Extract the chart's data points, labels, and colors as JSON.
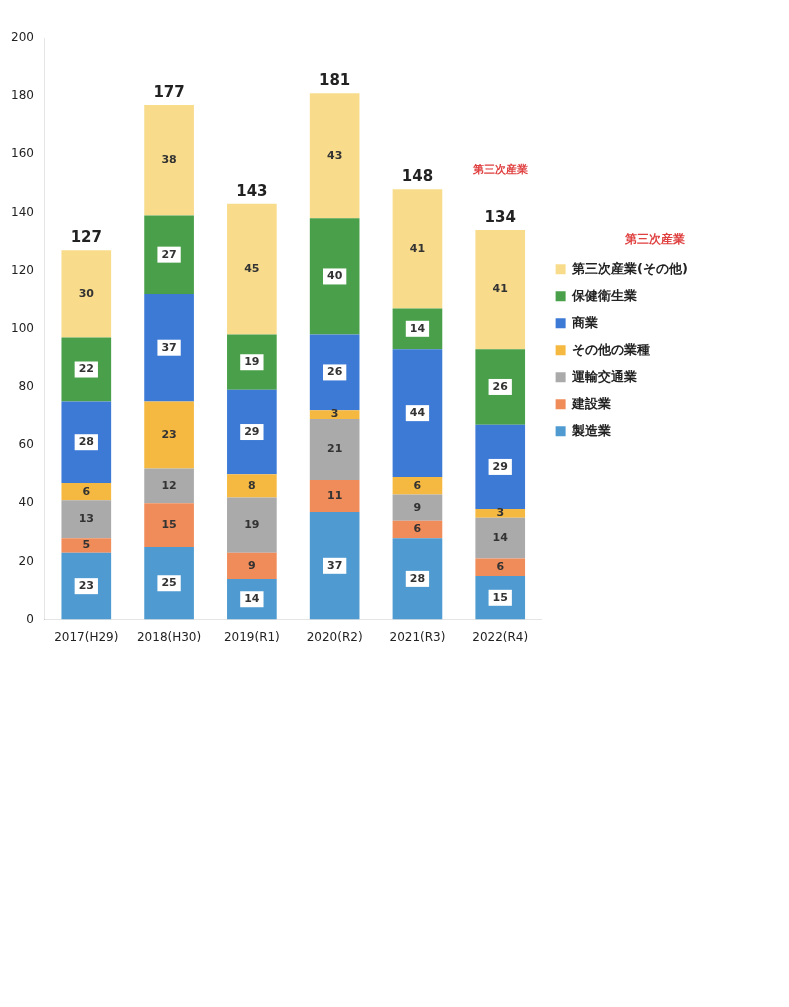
{
  "chart_data": {
    "type": "bar",
    "stacked": true,
    "categories": [
      "2017(H29)",
      "2018(H30)",
      "2019(R1)",
      "2020(R2)",
      "2021(R3)",
      "2022(R4)"
    ],
    "series": [
      {
        "name": "製造業",
        "color": "#4f9bd1",
        "values": [
          23,
          25,
          14,
          37,
          28,
          15
        ]
      },
      {
        "name": "建設業",
        "color": "#f08c5a",
        "values": [
          5,
          15,
          9,
          11,
          6,
          6
        ]
      },
      {
        "name": "運輸交通業",
        "color": "#aaaaaa",
        "values": [
          13,
          12,
          19,
          21,
          9,
          14
        ]
      },
      {
        "name": "その他の業種",
        "color": "#f5b942",
        "values": [
          6,
          23,
          8,
          3,
          6,
          3
        ]
      },
      {
        "name": "商業",
        "color": "#3d7ad6",
        "values": [
          28,
          37,
          29,
          26,
          44,
          29
        ]
      },
      {
        "name": "保健衛生業",
        "color": "#4aa04a",
        "values": [
          22,
          27,
          19,
          40,
          14,
          26
        ]
      },
      {
        "name": "第三次産業(その他)",
        "color": "#f8dc8c",
        "values": [
          30,
          38,
          45,
          43,
          41,
          41
        ]
      }
    ],
    "totals": [
      "127",
      "177",
      "143",
      "181",
      "148",
      "134"
    ],
    "data_labels": true,
    "ylim": [
      0,
      200
    ],
    "yticks": [
      0,
      20,
      40,
      60,
      80,
      100,
      120,
      140,
      160,
      180,
      200
    ],
    "grid": false,
    "legend": "right",
    "legend_title": "第三次産業",
    "annotations": [
      "第三次産業"
    ]
  }
}
